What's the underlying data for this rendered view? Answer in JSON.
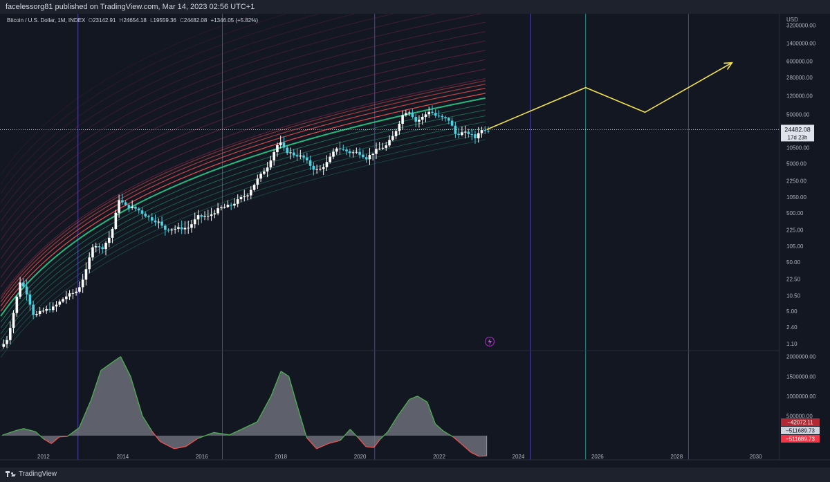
{
  "publisher_line": "facelessorg81 published on TradingView.com, Mar 14, 2023 02:56 UTC+1",
  "legend": {
    "symbol": "Bitcoin / U.S. Dollar, 1M, INDEX",
    "open_label": "O",
    "open": "23142.91",
    "high_label": "H",
    "high": "24654.18",
    "low_label": "L",
    "low": "19559.36",
    "close_label": "C",
    "close": "24482.08",
    "change": "+1346.05 (+5.82%)"
  },
  "footer": {
    "brand": "TradingView"
  },
  "colors": {
    "background": "#131722",
    "up_candle": "#ffffff",
    "down_candle": "#4dd0e1",
    "band_red": "#ef5350",
    "band_green": "#26c281",
    "arrow": "#f5e34a",
    "vline_purple": "#5b4bbf",
    "vline_teal": "#26a69a",
    "osc_fill": "#787b86",
    "osc_pos_line": "#4caf50",
    "osc_neg_line": "#ef5350"
  },
  "chart_data": {
    "type": "candlestick",
    "title": "Bitcoin / U.S. Dollar, 1M, INDEX",
    "scale": "log",
    "y_unit": "USD",
    "y_ticks": [
      "3200000.00",
      "1400000.00",
      "600000.00",
      "280000.00",
      "120000.00",
      "50000.00",
      "10500.00",
      "5000.00",
      "2250.00",
      "1050.00",
      "500.00",
      "225.00",
      "105.00",
      "50.00",
      "22.50",
      "10.50",
      "5.00",
      "2.40",
      "1.10"
    ],
    "x_ticks": [
      "2012",
      "2014",
      "2016",
      "2018",
      "2020",
      "2022",
      "2024",
      "2026",
      "2028",
      "2030"
    ],
    "x_range": [
      2010.9,
      2030.6
    ],
    "y_range": [
      0.85,
      5500000
    ],
    "last_price": "24482.08",
    "countdown": "17d 23h",
    "price_path": [
      [
        2010.95,
        0.95
      ],
      [
        2011.1,
        1.2
      ],
      [
        2011.25,
        3.5
      ],
      [
        2011.45,
        20
      ],
      [
        2011.6,
        13
      ],
      [
        2011.8,
        4
      ],
      [
        2012.0,
        5
      ],
      [
        2012.3,
        6
      ],
      [
        2012.6,
        10
      ],
      [
        2012.9,
        13
      ],
      [
        2013.1,
        30
      ],
      [
        2013.3,
        120
      ],
      [
        2013.5,
        90
      ],
      [
        2013.75,
        180
      ],
      [
        2013.95,
        950
      ],
      [
        2014.1,
        700
      ],
      [
        2014.4,
        600
      ],
      [
        2014.7,
        400
      ],
      [
        2014.95,
        320
      ],
      [
        2015.1,
        230
      ],
      [
        2015.4,
        240
      ],
      [
        2015.7,
        250
      ],
      [
        2015.95,
        420
      ],
      [
        2016.2,
        420
      ],
      [
        2016.5,
        620
      ],
      [
        2016.8,
        720
      ],
      [
        2017.0,
        960
      ],
      [
        2017.2,
        1200
      ],
      [
        2017.45,
        2400
      ],
      [
        2017.7,
        4400
      ],
      [
        2017.9,
        10000
      ],
      [
        2018.0,
        14000
      ],
      [
        2018.15,
        9000
      ],
      [
        2018.4,
        7500
      ],
      [
        2018.6,
        6800
      ],
      [
        2018.85,
        4000
      ],
      [
        2019.0,
        3600
      ],
      [
        2019.2,
        5200
      ],
      [
        2019.45,
        10500
      ],
      [
        2019.6,
        9600
      ],
      [
        2019.8,
        8300
      ],
      [
        2020.0,
        8500
      ],
      [
        2020.2,
        6500
      ],
      [
        2020.45,
        9300
      ],
      [
        2020.7,
        11500
      ],
      [
        2020.9,
        19000
      ],
      [
        2021.0,
        30000
      ],
      [
        2021.15,
        55000
      ],
      [
        2021.3,
        58000
      ],
      [
        2021.45,
        36000
      ],
      [
        2021.6,
        42000
      ],
      [
        2021.8,
        60000
      ],
      [
        2021.95,
        47000
      ],
      [
        2022.1,
        43000
      ],
      [
        2022.3,
        38000
      ],
      [
        2022.45,
        20000
      ],
      [
        2022.6,
        21000
      ],
      [
        2022.8,
        20500
      ],
      [
        2022.95,
        16500
      ],
      [
        2023.05,
        23000
      ],
      [
        2023.2,
        24482
      ]
    ],
    "projection_path": [
      [
        2023.2,
        24482
      ],
      [
        2025.7,
        175000
      ],
      [
        2027.2,
        55000
      ],
      [
        2029.4,
        560000
      ]
    ],
    "vertical_lines": [
      {
        "x": 2012.87,
        "color": "purple"
      },
      {
        "x": 2016.52,
        "color": "purple"
      },
      {
        "x": 2020.37,
        "color": "purple"
      },
      {
        "x": 2024.3,
        "color": "purple"
      },
      {
        "x": 2025.7,
        "color": "teal"
      },
      {
        "x": 2028.3,
        "color": "purple"
      }
    ],
    "oscillator": {
      "y_ticks": [
        "2000000.00",
        "1500000.00",
        "1000000.00",
        "500000.00"
      ],
      "y_range": [
        -350000,
        2100000
      ],
      "labels": [
        "−42072.11",
        "−511689.73",
        "−511689.73"
      ],
      "series": [
        [
          2010.95,
          10000
        ],
        [
          2011.3,
          130000
        ],
        [
          2011.5,
          180000
        ],
        [
          2011.8,
          100000
        ],
        [
          2012.0,
          -80000
        ],
        [
          2012.2,
          -200000
        ],
        [
          2012.4,
          -30000
        ],
        [
          2012.6,
          -20000
        ],
        [
          2012.9,
          200000
        ],
        [
          2013.2,
          900000
        ],
        [
          2013.45,
          1650000
        ],
        [
          2013.8,
          1900000
        ],
        [
          2013.95,
          2000000
        ],
        [
          2014.2,
          1500000
        ],
        [
          2014.5,
          500000
        ],
        [
          2014.75,
          100000
        ],
        [
          2014.95,
          -150000
        ],
        [
          2015.3,
          -330000
        ],
        [
          2015.6,
          -270000
        ],
        [
          2015.9,
          -70000
        ],
        [
          2016.3,
          80000
        ],
        [
          2016.7,
          20000
        ],
        [
          2017.0,
          160000
        ],
        [
          2017.4,
          350000
        ],
        [
          2017.75,
          1000000
        ],
        [
          2018.0,
          1630000
        ],
        [
          2018.2,
          1500000
        ],
        [
          2018.4,
          800000
        ],
        [
          2018.65,
          -50000
        ],
        [
          2018.9,
          -330000
        ],
        [
          2019.2,
          -200000
        ],
        [
          2019.5,
          -120000
        ],
        [
          2019.75,
          160000
        ],
        [
          2019.95,
          -50000
        ],
        [
          2020.15,
          -280000
        ],
        [
          2020.35,
          -300000
        ],
        [
          2020.5,
          -100000
        ],
        [
          2020.7,
          100000
        ],
        [
          2020.95,
          500000
        ],
        [
          2021.25,
          920000
        ],
        [
          2021.45,
          1000000
        ],
        [
          2021.7,
          850000
        ],
        [
          2021.9,
          300000
        ],
        [
          2022.1,
          120000
        ],
        [
          2022.35,
          -30000
        ],
        [
          2022.55,
          -200000
        ],
        [
          2022.8,
          -420000
        ],
        [
          2023.0,
          -520000
        ],
        [
          2023.2,
          -511689
        ]
      ]
    }
  }
}
